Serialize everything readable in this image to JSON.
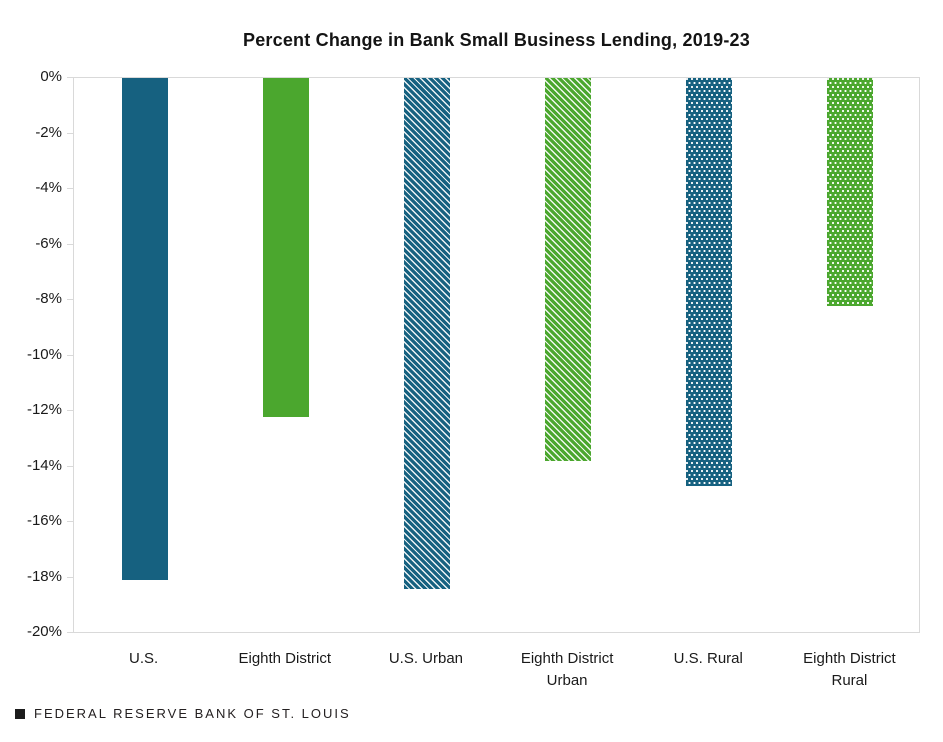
{
  "chart_data": {
    "type": "bar",
    "title": "Percent Change in Bank Small Business Lending, 2019-23",
    "categories": [
      "U.S.",
      "Eighth District",
      "U.S. Urban",
      "Eighth District Urban",
      "U.S. Rural",
      "Eighth District Rural"
    ],
    "values": [
      -18.1,
      -12.2,
      -18.4,
      -13.8,
      -14.7,
      -8.2
    ],
    "bar_colors": [
      "#166180",
      "#4ba72e",
      "#166180",
      "#4ba72e",
      "#166180",
      "#4ba72e"
    ],
    "bar_patterns": [
      "solid",
      "solid",
      "diagonal-hatch",
      "diagonal-hatch",
      "dots",
      "dots"
    ],
    "xlabel": "",
    "ylabel": "",
    "ylim": [
      -20,
      0
    ],
    "ytick_step": 2,
    "ytick_labels": [
      "0%",
      "-2%",
      "-4%",
      "-6%",
      "-8%",
      "-10%",
      "-12%",
      "-14%",
      "-16%",
      "-18%",
      "-20%"
    ],
    "grid": false,
    "legend_position": "none",
    "axis_color": "#d9d9d9",
    "background_color": "#ffffff"
  },
  "footer": {
    "brand_marker": "square-bullet",
    "brand_text": "FEDERAL RESERVE BANK OF ST. LOUIS"
  }
}
